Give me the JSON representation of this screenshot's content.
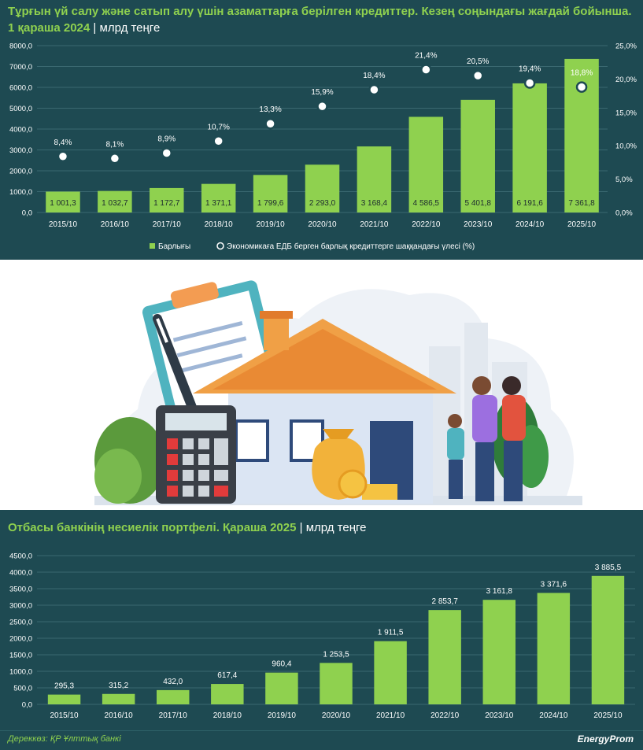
{
  "top_chart": {
    "title_line1": "Тұрғын үй салу және сатып алу үшін азаматтарға берілген  кредиттер. Кезең соңындағы жағдай бойынша.",
    "title_line2": "1 қараша 2024",
    "separator": "|",
    "unit": "млрд теңге"
  },
  "bottom_chart": {
    "title": "Отбасы банкінің несиелік портфелі. Қараша 2025",
    "separator": "|",
    "unit": "млрд теңге"
  },
  "footer": {
    "source": "Дереккөз: ҚР Ұлттық банкі",
    "logo": "EnergyProm"
  },
  "colors": {
    "background": "#1e4a52",
    "bar": "#8fd14f",
    "title": "#8fd14f",
    "text": "#ffffff"
  },
  "chart_data": [
    {
      "type": "bar",
      "categories": [
        "2015/10",
        "2016/10",
        "2017/10",
        "2018/10",
        "2019/10",
        "2020/10",
        "2021/10",
        "2022/10",
        "2023/10",
        "2024/10",
        "2025/10"
      ],
      "series": [
        {
          "name": "Барлығы",
          "values": [
            1001.3,
            1032.7,
            1172.7,
            1371.1,
            1799.6,
            2293.0,
            3168.4,
            4586.5,
            5401.8,
            6191.6,
            7361.8
          ],
          "labels": [
            "1 001,3",
            "1 032,7",
            "1 172,7",
            "1 371,1",
            "1 799,6",
            "2 293,0",
            "3 168,4",
            "4 586,5",
            "5 401,8",
            "6 191,6",
            "7 361,8"
          ]
        },
        {
          "name": "Экономикаға ЕДБ берген барлық кредиттерге шаққандағы үлесі (%)",
          "axis": "right",
          "values": [
            8.4,
            8.1,
            8.9,
            10.7,
            13.3,
            15.9,
            18.4,
            21.4,
            20.5,
            19.4,
            18.8
          ],
          "labels": [
            "8,4%",
            "8,1%",
            "8,9%",
            "10,7%",
            "13,3%",
            "15,9%",
            "18,4%",
            "21,4%",
            "20,5%",
            "19,4%",
            "18,8%"
          ]
        }
      ],
      "ylim": [
        0,
        8000
      ],
      "yticks": [
        "0,0",
        "1000,0",
        "2000,0",
        "3000,0",
        "4000,0",
        "5000,0",
        "6000,0",
        "7000,0",
        "8000,0"
      ],
      "y2lim": [
        0,
        25
      ],
      "y2ticks": [
        "0,0%",
        "5,0%",
        "10,0%",
        "15,0%",
        "20,0%",
        "25,0%"
      ],
      "grid": true,
      "legend": "bottom-center"
    },
    {
      "type": "bar",
      "categories": [
        "2015/10",
        "2016/10",
        "2017/10",
        "2018/10",
        "2019/10",
        "2020/10",
        "2021/10",
        "2022/10",
        "2023/10",
        "2024/10",
        "2025/10"
      ],
      "values": [
        295.3,
        315.2,
        432.0,
        617.4,
        960.4,
        1253.5,
        1911.5,
        2853.7,
        3161.8,
        3371.6,
        3885.5
      ],
      "labels": [
        "295,3",
        "315,2",
        "432,0",
        "617,4",
        "960,4",
        "1 253,5",
        "1 911,5",
        "2 853,7",
        "3 161,8",
        "3 371,6",
        "3 885,5"
      ],
      "ylim": [
        0,
        4500
      ],
      "yticks": [
        "0,0",
        "500,0",
        "1000,0",
        "1500,0",
        "2000,0",
        "2500,0",
        "3000,0",
        "3500,0",
        "4000,0",
        "4500,0"
      ],
      "grid": true
    }
  ]
}
